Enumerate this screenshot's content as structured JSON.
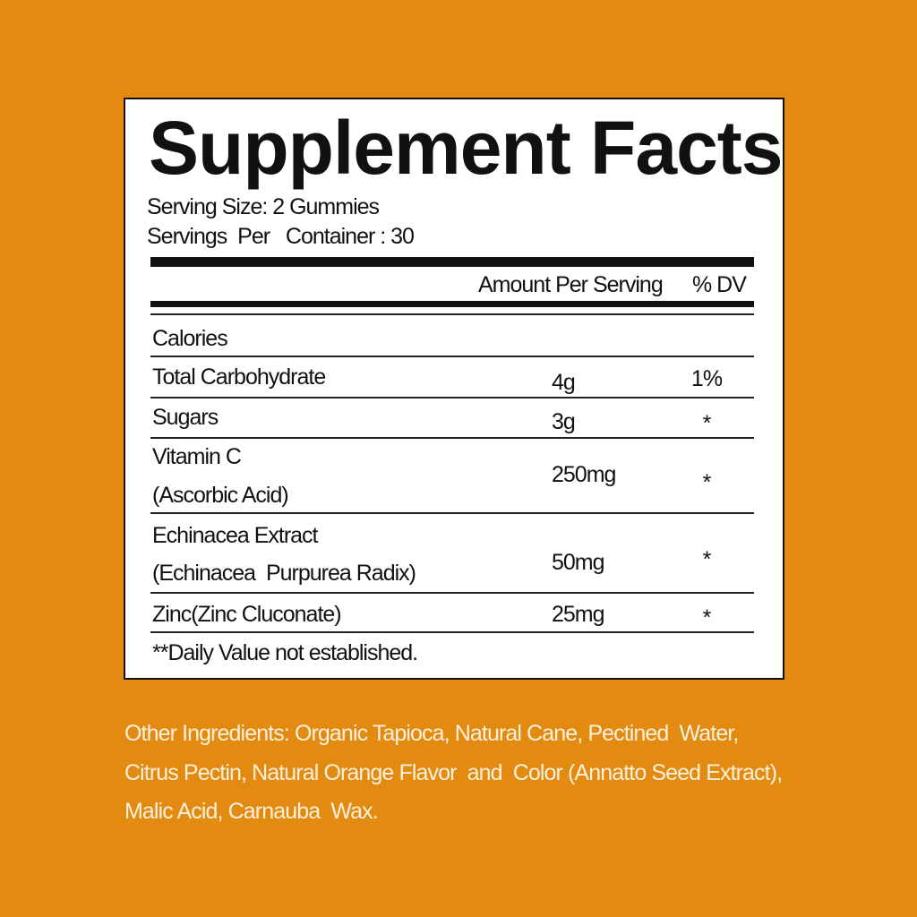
{
  "label": {
    "title": "Supplement Facts",
    "serving_size": "Serving Size: 2 Gummies",
    "servings_per_container": "Servings  Per   Container : 30",
    "header_amount": "Amount Per Serving",
    "header_dv": "% DV",
    "rows": [
      {
        "name": "Calories",
        "amount": "",
        "dv": ""
      },
      {
        "name": "Total Carbohydrate",
        "amount": "4g",
        "dv": "1%"
      },
      {
        "name": "Sugars",
        "amount": "3g",
        "dv": "*"
      },
      {
        "name": "Vitamin C",
        "sub": "(Ascorbic Acid)",
        "amount": "250mg",
        "dv": "*"
      },
      {
        "name": "Echinacea Extract",
        "sub": "(Echinacea  Purpurea Radix)",
        "amount": "50mg",
        "dv": "*"
      },
      {
        "name": "Zinc(Zinc Cluconate)",
        "amount": "25mg",
        "dv": "*"
      }
    ],
    "footnote": "**Daily Value not established."
  },
  "other_ingredients": [
    "Other Ingredients: Organic Tapioca, Natural Cane, Pectined  Water,",
    "Citrus Pectin, Natural Orange Flavor  and  Color (Annatto Seed Extract),",
    "Malic Acid, Carnauba  Wax."
  ],
  "colors": {
    "background": "#E38A10",
    "label": "#FFFFFF",
    "ink": "#111111",
    "other_text": "#FDF0DC"
  }
}
